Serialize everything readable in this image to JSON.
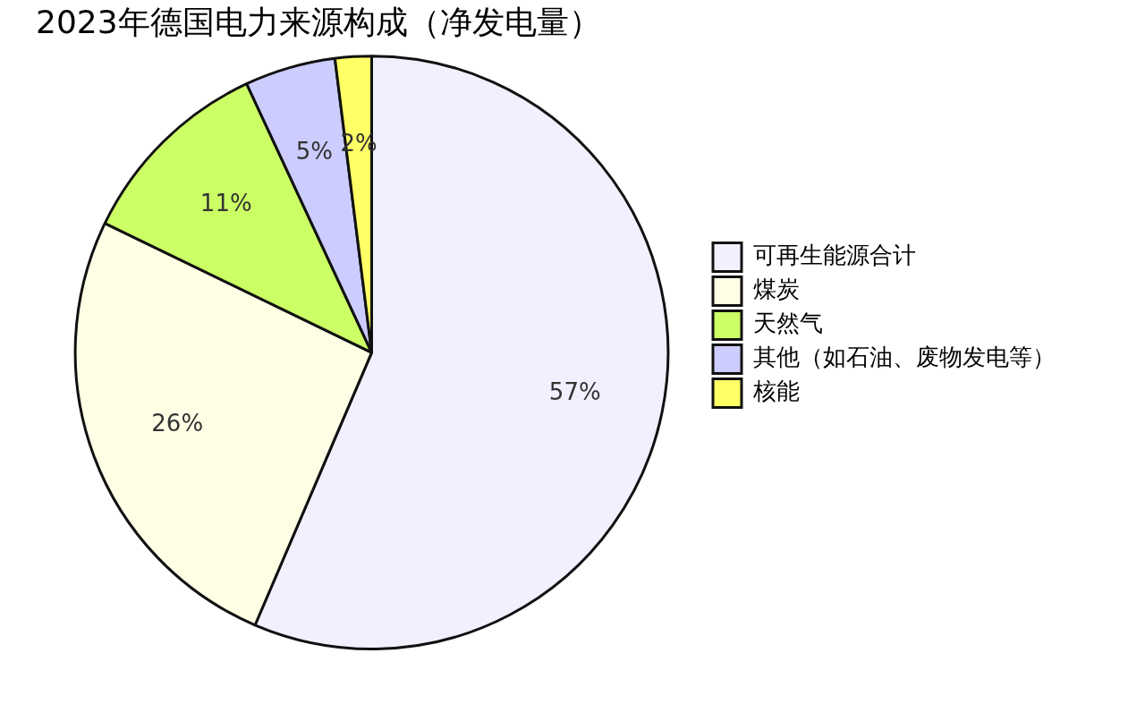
{
  "chart_data": {
    "type": "pie",
    "title": "2023年德国电力来源构成（净发电量）",
    "categories": [
      "可再生能源合计",
      "煤炭",
      "天然气",
      "其他（如石油、废物发电等）",
      "核能"
    ],
    "values": [
      57,
      26,
      11,
      5,
      2
    ],
    "colors": [
      "#f0f0ff",
      "#ffffe6",
      "#ccff66",
      "#ccccff",
      "#ffff66"
    ],
    "value_labels": [
      "57%",
      "26%",
      "11%",
      "5%",
      "2%"
    ],
    "legend": "right"
  }
}
